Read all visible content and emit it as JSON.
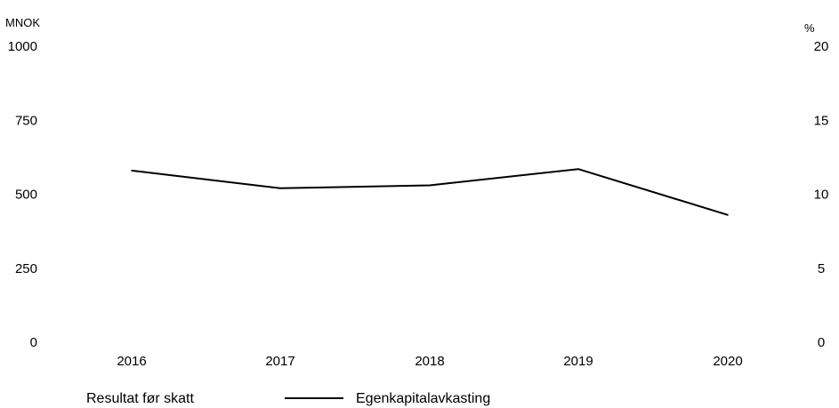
{
  "chart_data": {
    "type": "line",
    "title": "",
    "categories": [
      "2016",
      "2017",
      "2018",
      "2019",
      "2020"
    ],
    "left_axis": {
      "unit": "MNOK",
      "ylim": [
        0,
        1000
      ],
      "ticks": [
        "0",
        "250",
        "500",
        "750",
        "1000"
      ]
    },
    "right_axis": {
      "unit": "%",
      "ylim": [
        0,
        20
      ],
      "ticks": [
        "0",
        "5",
        "10",
        "15",
        "20"
      ]
    },
    "series": [
      {
        "name": "Resultat før skatt",
        "axis": "left",
        "type": "bar",
        "values": [
          null,
          null,
          null,
          null,
          null
        ]
      },
      {
        "name": "Egenkapitalavkasting",
        "axis": "right",
        "type": "line",
        "color": "#000000",
        "values": [
          11.6,
          10.4,
          10.6,
          11.7,
          8.6
        ]
      }
    ],
    "grid": false,
    "legend_position": "bottom"
  }
}
